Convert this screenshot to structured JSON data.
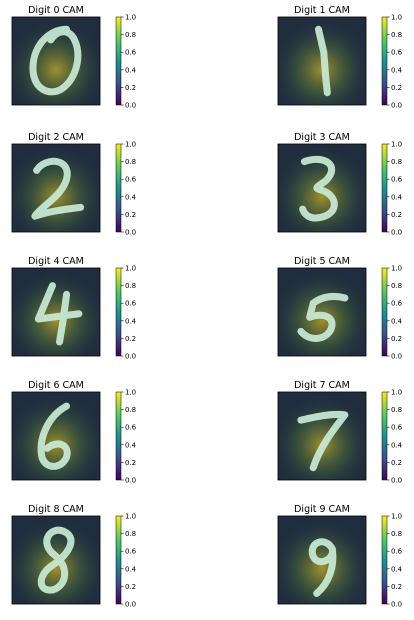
{
  "chart_data": {
    "type": "heatmap",
    "colormap": "viridis",
    "image_style": "grayscale MNIST digit overlaid with class activation map",
    "panels": [
      {
        "title": "Digit 0 CAM",
        "digit": "0"
      },
      {
        "title": "Digit 1 CAM",
        "digit": "1"
      },
      {
        "title": "Digit 2 CAM",
        "digit": "2"
      },
      {
        "title": "Digit 3 CAM",
        "digit": "3"
      },
      {
        "title": "Digit 4 CAM",
        "digit": "4"
      },
      {
        "title": "Digit 5 CAM",
        "digit": "5"
      },
      {
        "title": "Digit 6 CAM",
        "digit": "6"
      },
      {
        "title": "Digit 7 CAM",
        "digit": "7"
      },
      {
        "title": "Digit 8 CAM",
        "digit": "8"
      },
      {
        "title": "Digit 9 CAM",
        "digit": "9"
      }
    ],
    "colorbar": {
      "range": [
        0.0,
        1.0
      ],
      "ticks": [
        "0.0",
        "0.2",
        "0.4",
        "0.6",
        "0.8",
        "1.0"
      ]
    },
    "colors": {
      "viridis": [
        "#440154",
        "#3b528b",
        "#21918c",
        "#5ec962",
        "#fde725"
      ],
      "digit_stroke": "#c9ead6"
    }
  }
}
